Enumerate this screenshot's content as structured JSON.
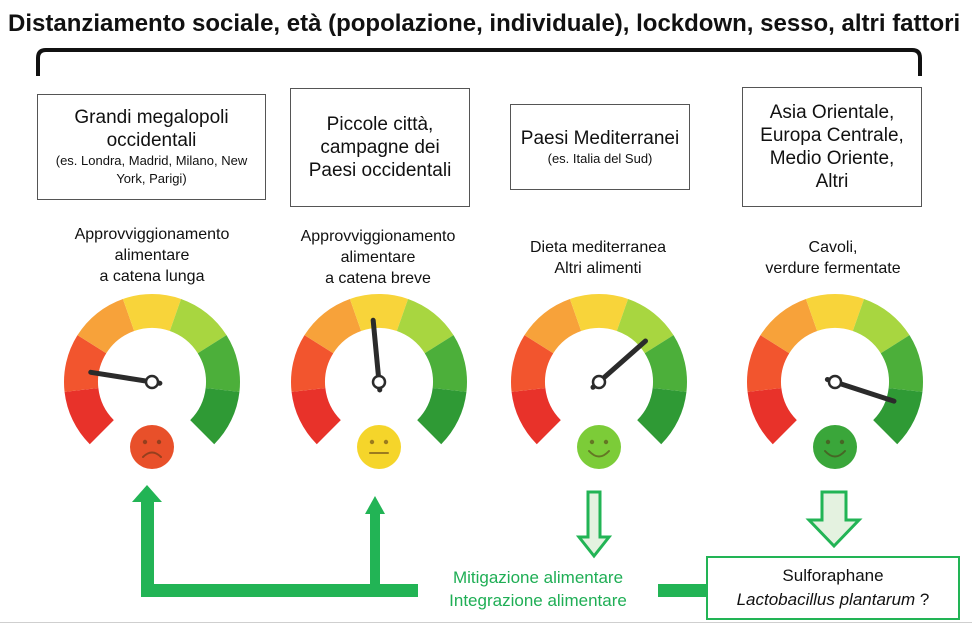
{
  "title": "Distanziamento sociale, età (popolazione, individuale), lockdown, sesso, altri fattori",
  "regions": [
    {
      "main": "Grandi megalopoli occidentali",
      "sub": "(es. Londra, Madrid, Milano, New York, Parigi)"
    },
    {
      "main": "Piccole città, campagne dei Paesi occidentali",
      "sub": ""
    },
    {
      "main": "Paesi Mediterranei",
      "sub": "(es. Italia del Sud)"
    },
    {
      "main": "Asia Orientale, Europa Centrale, Medio Oriente, Altri",
      "sub": ""
    }
  ],
  "foods": [
    {
      "line1": "Approvviggionamento",
      "line2": "alimentare",
      "line3": "a catena lunga"
    },
    {
      "line1": "Approvviggionamento",
      "line2": "alimentare",
      "line3": "a catena breve"
    },
    {
      "line1": "Dieta mediterranea",
      "line2": "Altri alimenti",
      "line3": ""
    },
    {
      "line1": "Cavoli,",
      "line2": "verdure fermentate",
      "line3": ""
    }
  ],
  "gauge_levels": [
    0.2,
    0.48,
    0.68,
    0.9
  ],
  "face_colors": [
    "#e8502a",
    "#f5d52a",
    "#7ccc38",
    "#3aa63a"
  ],
  "face_moods": [
    "sad",
    "neutral",
    "happy",
    "happy"
  ],
  "mitigation": {
    "line1": "Mitigazione alimentare",
    "line2": "Integrazione alimentare"
  },
  "supplement": {
    "compound": "Sulforaphane",
    "species": "Lactobacillus plantarum",
    "suffix": " ?"
  },
  "colors": {
    "accent": "#1fae55",
    "arrow_light": "#e4f2e0"
  }
}
